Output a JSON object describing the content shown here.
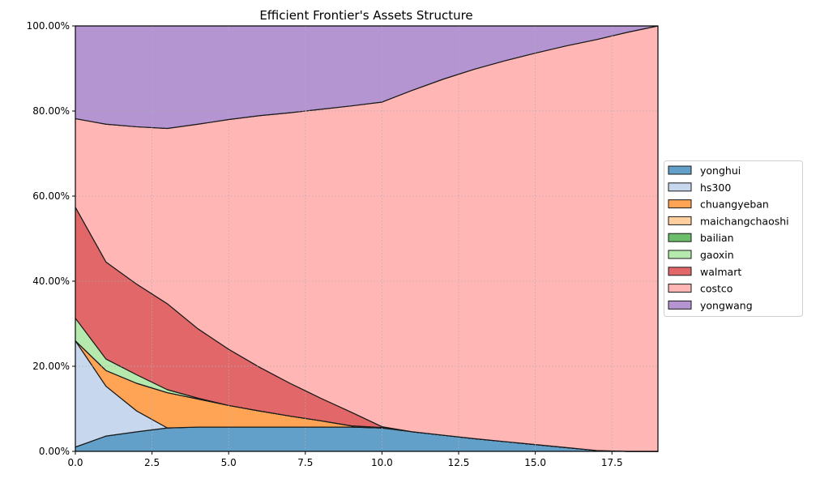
{
  "chart_data": {
    "type": "area",
    "stacked": true,
    "title": "Efficient Frontier's Assets Structure",
    "xlabel": "",
    "ylabel": "",
    "xlim": [
      0,
      19
    ],
    "ylim": [
      0,
      1
    ],
    "xticks": [
      0,
      2.5,
      5,
      7.5,
      10,
      12.5,
      15,
      17.5
    ],
    "xtick_labels": [
      "0.0",
      "2.5",
      "5.0",
      "7.5",
      "10.0",
      "12.5",
      "15.0",
      "17.5"
    ],
    "yticks": [
      0,
      0.2,
      0.4,
      0.6,
      0.8,
      1.0
    ],
    "ytick_labels": [
      "0.00%",
      "20.00%",
      "40.00%",
      "60.00%",
      "80.00%",
      "100.00%"
    ],
    "grid": true,
    "legend_placement": "right-outside",
    "x": [
      0,
      1,
      2,
      3,
      4,
      5,
      6,
      7,
      8,
      9,
      10,
      11,
      12,
      13,
      14,
      15,
      16,
      17,
      18,
      19
    ],
    "series": [
      {
        "name": "yonghui",
        "color": "#62a0ca",
        "values": [
          0.01,
          0.036,
          0.046,
          0.055,
          0.057,
          0.057,
          0.057,
          0.057,
          0.057,
          0.057,
          0.055,
          0.046,
          0.038,
          0.03,
          0.023,
          0.016,
          0.009,
          0.002,
          0,
          0
        ]
      },
      {
        "name": "hs300",
        "color": "#c6d7ee",
        "values": [
          0.25,
          0.117,
          0.049,
          0,
          0,
          0,
          0,
          0,
          0,
          0,
          0,
          0,
          0,
          0,
          0,
          0,
          0,
          0,
          0,
          0
        ]
      },
      {
        "name": "chuangyeban",
        "color": "#ffa454",
        "values": [
          0,
          0.037,
          0.065,
          0.083,
          0.066,
          0.051,
          0.038,
          0.026,
          0.015,
          0.003,
          0.001,
          0,
          0,
          0,
          0,
          0,
          0,
          0,
          0,
          0
        ]
      },
      {
        "name": "maichangchaoshi",
        "color": "#ffcf9f",
        "values": [
          0,
          0,
          0,
          0,
          0,
          0,
          0,
          0,
          0,
          0,
          0,
          0,
          0,
          0,
          0,
          0,
          0,
          0,
          0,
          0
        ]
      },
      {
        "name": "bailian",
        "color": "#6bbc6b",
        "values": [
          0,
          0,
          0,
          0,
          0,
          0,
          0,
          0,
          0,
          0,
          0,
          0,
          0,
          0,
          0,
          0,
          0,
          0,
          0,
          0
        ]
      },
      {
        "name": "gaoxin",
        "color": "#b6e9ad",
        "values": [
          0.053,
          0.027,
          0.02,
          0.007,
          0.002,
          0,
          0,
          0,
          0,
          0,
          0,
          0,
          0,
          0,
          0,
          0,
          0,
          0,
          0,
          0
        ]
      },
      {
        "name": "walmart",
        "color": "#e26768",
        "values": [
          0.261,
          0.228,
          0.213,
          0.202,
          0.163,
          0.132,
          0.103,
          0.077,
          0.053,
          0.032,
          0.002,
          0,
          0,
          0,
          0,
          0,
          0,
          0,
          0,
          0
        ]
      },
      {
        "name": "costco",
        "color": "#ffb6b5",
        "values": [
          0.208,
          0.324,
          0.37,
          0.412,
          0.481,
          0.54,
          0.591,
          0.636,
          0.679,
          0.72,
          0.763,
          0.803,
          0.837,
          0.868,
          0.895,
          0.92,
          0.944,
          0.966,
          0.985,
          1.0
        ]
      },
      {
        "name": "yongwang",
        "color": "#b494d1",
        "values": [
          0.218,
          0.231,
          0.237,
          0.241,
          0.231,
          0.22,
          0.211,
          0.204,
          0.196,
          0.188,
          0.179,
          0.151,
          0.125,
          0.102,
          0.082,
          0.064,
          0.047,
          0.032,
          0.015,
          0
        ]
      }
    ]
  }
}
